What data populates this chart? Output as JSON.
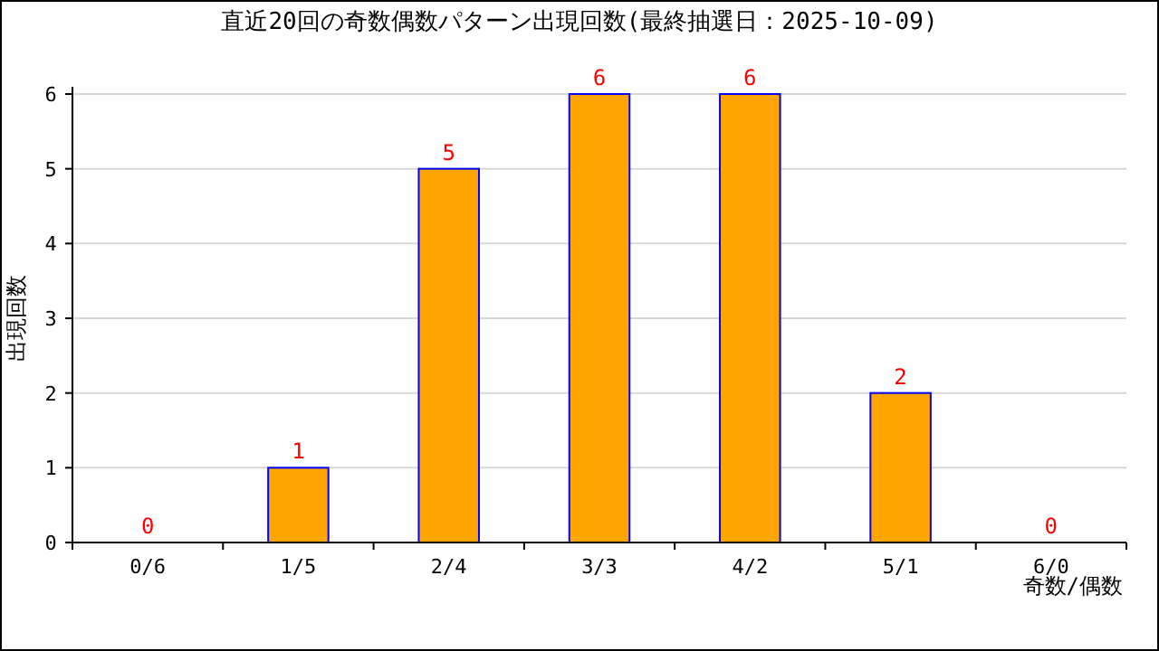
{
  "chart_data": {
    "type": "bar",
    "title": "直近20回の奇数偶数パターン出現回数(最終抽選日：2025-10-09)",
    "xlabel": "奇数/偶数",
    "ylabel": "出現回数",
    "categories": [
      "0/6",
      "1/5",
      "2/4",
      "3/3",
      "4/2",
      "5/1",
      "6/0"
    ],
    "values": [
      0,
      1,
      5,
      6,
      6,
      2,
      0
    ],
    "color": "#ffa500",
    "ylim": [
      0,
      6
    ],
    "yticks": [
      0,
      1,
      2,
      3,
      4,
      5,
      6
    ],
    "grid": "y",
    "data_labels": true
  }
}
